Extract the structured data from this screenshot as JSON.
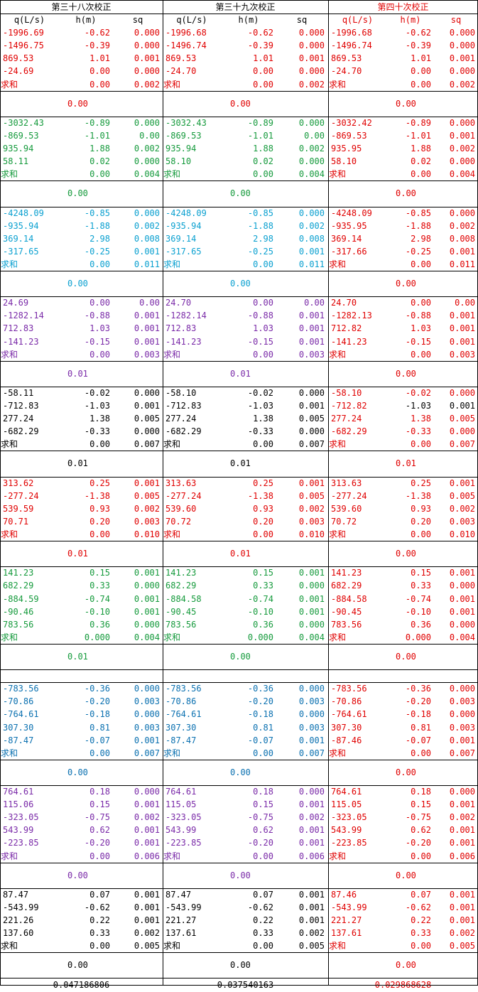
{
  "headers": [
    {
      "title": "第三十八次校正",
      "color": "#000000"
    },
    {
      "title": "第三十九次校正",
      "color": "#000000"
    },
    {
      "title": "第四十次校正",
      "color": "#e00000"
    }
  ],
  "columns": [
    "q(L/s)",
    "h(m)",
    "sq"
  ],
  "sum_label": "求和",
  "groups": [
    {
      "colors": [
        "#e00000",
        "#e00000",
        "#e00000"
      ],
      "rows": [
        [
          [
            "-1996.69",
            "-0.62",
            "0.000"
          ],
          [
            "-1996.68",
            "-0.62",
            "0.000"
          ],
          [
            "-1996.68",
            "-0.62",
            "0.000"
          ]
        ],
        [
          [
            "-1496.75",
            "-0.39",
            "0.000"
          ],
          [
            "-1496.74",
            "-0.39",
            "0.000"
          ],
          [
            "-1496.74",
            "-0.39",
            "0.000"
          ]
        ],
        [
          [
            "869.53",
            "1.01",
            "0.001"
          ],
          [
            "869.53",
            "1.01",
            "0.001"
          ],
          [
            "869.53",
            "1.01",
            "0.001"
          ]
        ],
        [
          [
            "-24.69",
            "0.00",
            "0.000"
          ],
          [
            "-24.70",
            "0.00",
            "0.000"
          ],
          [
            "-24.70",
            "0.00",
            "0.000"
          ]
        ]
      ],
      "sum": [
        [
          "0.00",
          "0.002"
        ],
        [
          "0.00",
          "0.002"
        ],
        [
          "0.00",
          "0.002"
        ]
      ],
      "gap": [
        "0.00",
        "0.00",
        "0.00"
      ]
    },
    {
      "colors": [
        "#159a3c",
        "#159a3c",
        "#e00000"
      ],
      "rows": [
        [
          [
            "-3032.43",
            "-0.89",
            "0.000"
          ],
          [
            "-3032.43",
            "-0.89",
            "0.000"
          ],
          [
            "-3032.42",
            "-0.89",
            "0.000"
          ]
        ],
        [
          [
            "-869.53",
            "-1.01",
            "0.00"
          ],
          [
            "-869.53",
            "-1.01",
            "0.00"
          ],
          [
            "-869.53",
            "-1.01",
            "0.001"
          ]
        ],
        [
          [
            "935.94",
            "1.88",
            "0.002"
          ],
          [
            "935.94",
            "1.88",
            "0.002"
          ],
          [
            "935.95",
            "1.88",
            "0.002"
          ]
        ],
        [
          [
            "58.11",
            "0.02",
            "0.000"
          ],
          [
            "58.10",
            "0.02",
            "0.000"
          ],
          [
            "58.10",
            "0.02",
            "0.000"
          ]
        ]
      ],
      "sum": [
        [
          "0.00",
          "0.004"
        ],
        [
          "0.00",
          "0.004"
        ],
        [
          "0.00",
          "0.004"
        ]
      ],
      "gap": [
        "0.00",
        "0.00",
        "0.00"
      ]
    },
    {
      "colors": [
        "#0aa0d0",
        "#0aa0d0",
        "#e00000"
      ],
      "rows": [
        [
          [
            "-4248.09",
            "-0.85",
            "0.000"
          ],
          [
            "-4248.09",
            "-0.85",
            "0.000"
          ],
          [
            "-4248.09",
            "-0.85",
            "0.000"
          ]
        ],
        [
          [
            "-935.94",
            "-1.88",
            "0.002"
          ],
          [
            "-935.94",
            "-1.88",
            "0.002"
          ],
          [
            "-935.95",
            "-1.88",
            "0.002"
          ]
        ],
        [
          [
            "369.14",
            "2.98",
            "0.008"
          ],
          [
            "369.14",
            "2.98",
            "0.008"
          ],
          [
            "369.14",
            "2.98",
            "0.008"
          ]
        ],
        [
          [
            "-317.65",
            "-0.25",
            "0.001"
          ],
          [
            "-317.65",
            "-0.25",
            "0.001"
          ],
          [
            "-317.66",
            "-0.25",
            "0.001"
          ]
        ]
      ],
      "sum": [
        [
          "0.00",
          "0.011"
        ],
        [
          "0.00",
          "0.011"
        ],
        [
          "0.00",
          "0.011"
        ]
      ],
      "gap": [
        "0.00",
        "0.00",
        "0.00"
      ]
    },
    {
      "colors": [
        "#7a2aa8",
        "#7a2aa8",
        "#e00000"
      ],
      "rows": [
        [
          [
            "24.69",
            "0.00",
            "0.00"
          ],
          [
            "24.70",
            "0.00",
            "0.00"
          ],
          [
            "24.70",
            "0.00",
            "0.00"
          ]
        ],
        [
          [
            "-1282.14",
            "-0.88",
            "0.001"
          ],
          [
            "-1282.14",
            "-0.88",
            "0.001"
          ],
          [
            "-1282.13",
            "-0.88",
            "0.001"
          ]
        ],
        [
          [
            "712.83",
            "1.03",
            "0.001"
          ],
          [
            "712.83",
            "1.03",
            "0.001"
          ],
          [
            "712.82",
            "1.03",
            "0.001"
          ]
        ],
        [
          [
            "-141.23",
            "-0.15",
            "0.001"
          ],
          [
            "-141.23",
            "-0.15",
            "0.001"
          ],
          [
            "-141.23",
            "-0.15",
            "0.001"
          ]
        ]
      ],
      "sum": [
        [
          "0.00",
          "0.003"
        ],
        [
          "0.00",
          "0.003"
        ],
        [
          "0.00",
          "0.003"
        ]
      ],
      "gap": [
        "0.01",
        "0.01",
        "0.00"
      ]
    },
    {
      "colors": [
        "#000000",
        "#000000",
        "#e00000"
      ],
      "mixed_last": true,
      "rows": [
        [
          [
            "-58.11",
            "-0.02",
            "0.000"
          ],
          [
            "-58.10",
            "-0.02",
            "0.000"
          ],
          [
            "-58.10",
            "-0.02",
            "0.000"
          ]
        ],
        [
          [
            "-712.83",
            "-1.03",
            "0.001"
          ],
          [
            "-712.83",
            "-1.03",
            "0.001"
          ],
          [
            "-712.82",
            "-1.03",
            "0.001"
          ]
        ],
        [
          [
            "277.24",
            "1.38",
            "0.005"
          ],
          [
            "277.24",
            "1.38",
            "0.005"
          ],
          [
            "277.24",
            "1.38",
            "0.005"
          ]
        ],
        [
          [
            "-682.29",
            "-0.33",
            "0.000"
          ],
          [
            "-682.29",
            "-0.33",
            "0.000"
          ],
          [
            "-682.29",
            "-0.33",
            "0.000"
          ]
        ]
      ],
      "sum": [
        [
          "0.00",
          "0.007"
        ],
        [
          "0.00",
          "0.007"
        ],
        [
          "0.00",
          "0.007"
        ]
      ],
      "gap": [
        "0.01",
        "0.01",
        "0.01"
      ]
    },
    {
      "colors": [
        "#e00000",
        "#e00000",
        "#e00000"
      ],
      "rows": [
        [
          [
            "313.62",
            "0.25",
            "0.001"
          ],
          [
            "313.63",
            "0.25",
            "0.001"
          ],
          [
            "313.63",
            "0.25",
            "0.001"
          ]
        ],
        [
          [
            "-277.24",
            "-1.38",
            "0.005"
          ],
          [
            "-277.24",
            "-1.38",
            "0.005"
          ],
          [
            "-277.24",
            "-1.38",
            "0.005"
          ]
        ],
        [
          [
            "539.59",
            "0.93",
            "0.002"
          ],
          [
            "539.60",
            "0.93",
            "0.002"
          ],
          [
            "539.60",
            "0.93",
            "0.002"
          ]
        ],
        [
          [
            "70.71",
            "0.20",
            "0.003"
          ],
          [
            "70.72",
            "0.20",
            "0.003"
          ],
          [
            "70.72",
            "0.20",
            "0.003"
          ]
        ]
      ],
      "sum": [
        [
          "0.00",
          "0.010"
        ],
        [
          "0.00",
          "0.010"
        ],
        [
          "0.00",
          "0.010"
        ]
      ],
      "gap": [
        "0.01",
        "0.01",
        "0.00"
      ]
    },
    {
      "colors": [
        "#159a3c",
        "#159a3c",
        "#e00000"
      ],
      "rows": [
        [
          [
            "141.23",
            "0.15",
            "0.001"
          ],
          [
            "141.23",
            "0.15",
            "0.001"
          ],
          [
            "141.23",
            "0.15",
            "0.001"
          ]
        ],
        [
          [
            "682.29",
            "0.33",
            "0.000"
          ],
          [
            "682.29",
            "0.33",
            "0.000"
          ],
          [
            "682.29",
            "0.33",
            "0.000"
          ]
        ],
        [
          [
            "-884.59",
            "-0.74",
            "0.001"
          ],
          [
            "-884.58",
            "-0.74",
            "0.001"
          ],
          [
            "-884.58",
            "-0.74",
            "0.001"
          ]
        ],
        [
          [
            "-90.46",
            "-0.10",
            "0.001"
          ],
          [
            "-90.45",
            "-0.10",
            "0.001"
          ],
          [
            "-90.45",
            "-0.10",
            "0.001"
          ]
        ],
        [
          [
            "783.56",
            "0.36",
            "0.000"
          ],
          [
            "783.56",
            "0.36",
            "0.000"
          ],
          [
            "783.56",
            "0.36",
            "0.000"
          ]
        ]
      ],
      "sum": [
        [
          "0.000",
          "0.004"
        ],
        [
          "0.000",
          "0.004"
        ],
        [
          "0.000",
          "0.004"
        ]
      ],
      "gap": [
        "0.01",
        "0.00",
        "0.00"
      ],
      "spacer": true
    },
    {
      "colors": [
        "#0a70b0",
        "#0a70b0",
        "#e00000"
      ],
      "rows": [
        [
          [
            "-783.56",
            "-0.36",
            "0.000"
          ],
          [
            "-783.56",
            "-0.36",
            "0.000"
          ],
          [
            "-783.56",
            "-0.36",
            "0.000"
          ]
        ],
        [
          [
            "-70.86",
            "-0.20",
            "0.003"
          ],
          [
            "-70.86",
            "-0.20",
            "0.003"
          ],
          [
            "-70.86",
            "-0.20",
            "0.003"
          ]
        ],
        [
          [
            "-764.61",
            "-0.18",
            "0.000"
          ],
          [
            "-764.61",
            "-0.18",
            "0.000"
          ],
          [
            "-764.61",
            "-0.18",
            "0.000"
          ]
        ],
        [
          [
            "307.30",
            "0.81",
            "0.003"
          ],
          [
            "307.30",
            "0.81",
            "0.003"
          ],
          [
            "307.30",
            "0.81",
            "0.003"
          ]
        ],
        [
          [
            "-87.47",
            "-0.07",
            "0.001"
          ],
          [
            "-87.47",
            "-0.07",
            "0.001"
          ],
          [
            "-87.46",
            "-0.07",
            "0.001"
          ]
        ]
      ],
      "sum": [
        [
          "0.00",
          "0.007"
        ],
        [
          "0.00",
          "0.007"
        ],
        [
          "0.00",
          "0.007"
        ]
      ],
      "gap": [
        "0.00",
        "0.00",
        "0.00"
      ]
    },
    {
      "colors": [
        "#7a2aa8",
        "#7a2aa8",
        "#e00000"
      ],
      "rows": [
        [
          [
            "764.61",
            "0.18",
            "0.000"
          ],
          [
            "764.61",
            "0.18",
            "0.000"
          ],
          [
            "764.61",
            "0.18",
            "0.000"
          ]
        ],
        [
          [
            "115.06",
            "0.15",
            "0.001"
          ],
          [
            "115.05",
            "0.15",
            "0.001"
          ],
          [
            "115.05",
            "0.15",
            "0.001"
          ]
        ],
        [
          [
            "-323.05",
            "-0.75",
            "0.002"
          ],
          [
            "-323.05",
            "-0.75",
            "0.002"
          ],
          [
            "-323.05",
            "-0.75",
            "0.002"
          ]
        ],
        [
          [
            "543.99",
            "0.62",
            "0.001"
          ],
          [
            "543.99",
            "0.62",
            "0.001"
          ],
          [
            "543.99",
            "0.62",
            "0.001"
          ]
        ],
        [
          [
            "-223.85",
            "-0.20",
            "0.001"
          ],
          [
            "-223.85",
            "-0.20",
            "0.001"
          ],
          [
            "-223.85",
            "-0.20",
            "0.001"
          ]
        ]
      ],
      "sum": [
        [
          "0.00",
          "0.006"
        ],
        [
          "0.00",
          "0.006"
        ],
        [
          "0.00",
          "0.006"
        ]
      ],
      "gap": [
        "0.00",
        "0.00",
        "0.00"
      ]
    },
    {
      "colors": [
        "#000000",
        "#000000",
        "#e00000"
      ],
      "rows": [
        [
          [
            "87.47",
            "0.07",
            "0.001"
          ],
          [
            "87.47",
            "0.07",
            "0.001"
          ],
          [
            "87.46",
            "0.07",
            "0.001"
          ]
        ],
        [
          [
            "-543.99",
            "-0.62",
            "0.001"
          ],
          [
            "-543.99",
            "-0.62",
            "0.001"
          ],
          [
            "-543.99",
            "-0.62",
            "0.001"
          ]
        ],
        [
          [
            "221.26",
            "0.22",
            "0.001"
          ],
          [
            "221.27",
            "0.22",
            "0.001"
          ],
          [
            "221.27",
            "0.22",
            "0.001"
          ]
        ],
        [
          [
            "137.60",
            "0.33",
            "0.002"
          ],
          [
            "137.61",
            "0.33",
            "0.002"
          ],
          [
            "137.61",
            "0.33",
            "0.002"
          ]
        ]
      ],
      "sum": [
        [
          "0.00",
          "0.005"
        ],
        [
          "0.00",
          "0.005"
        ],
        [
          "0.00",
          "0.005"
        ]
      ],
      "gap": [
        "0.00",
        "0.00",
        "0.00"
      ]
    }
  ],
  "totals": [
    "0.047186806",
    "0.037540163",
    "0.029868628"
  ],
  "totals_colors": [
    "#000000",
    "#000000",
    "#e00000"
  ]
}
